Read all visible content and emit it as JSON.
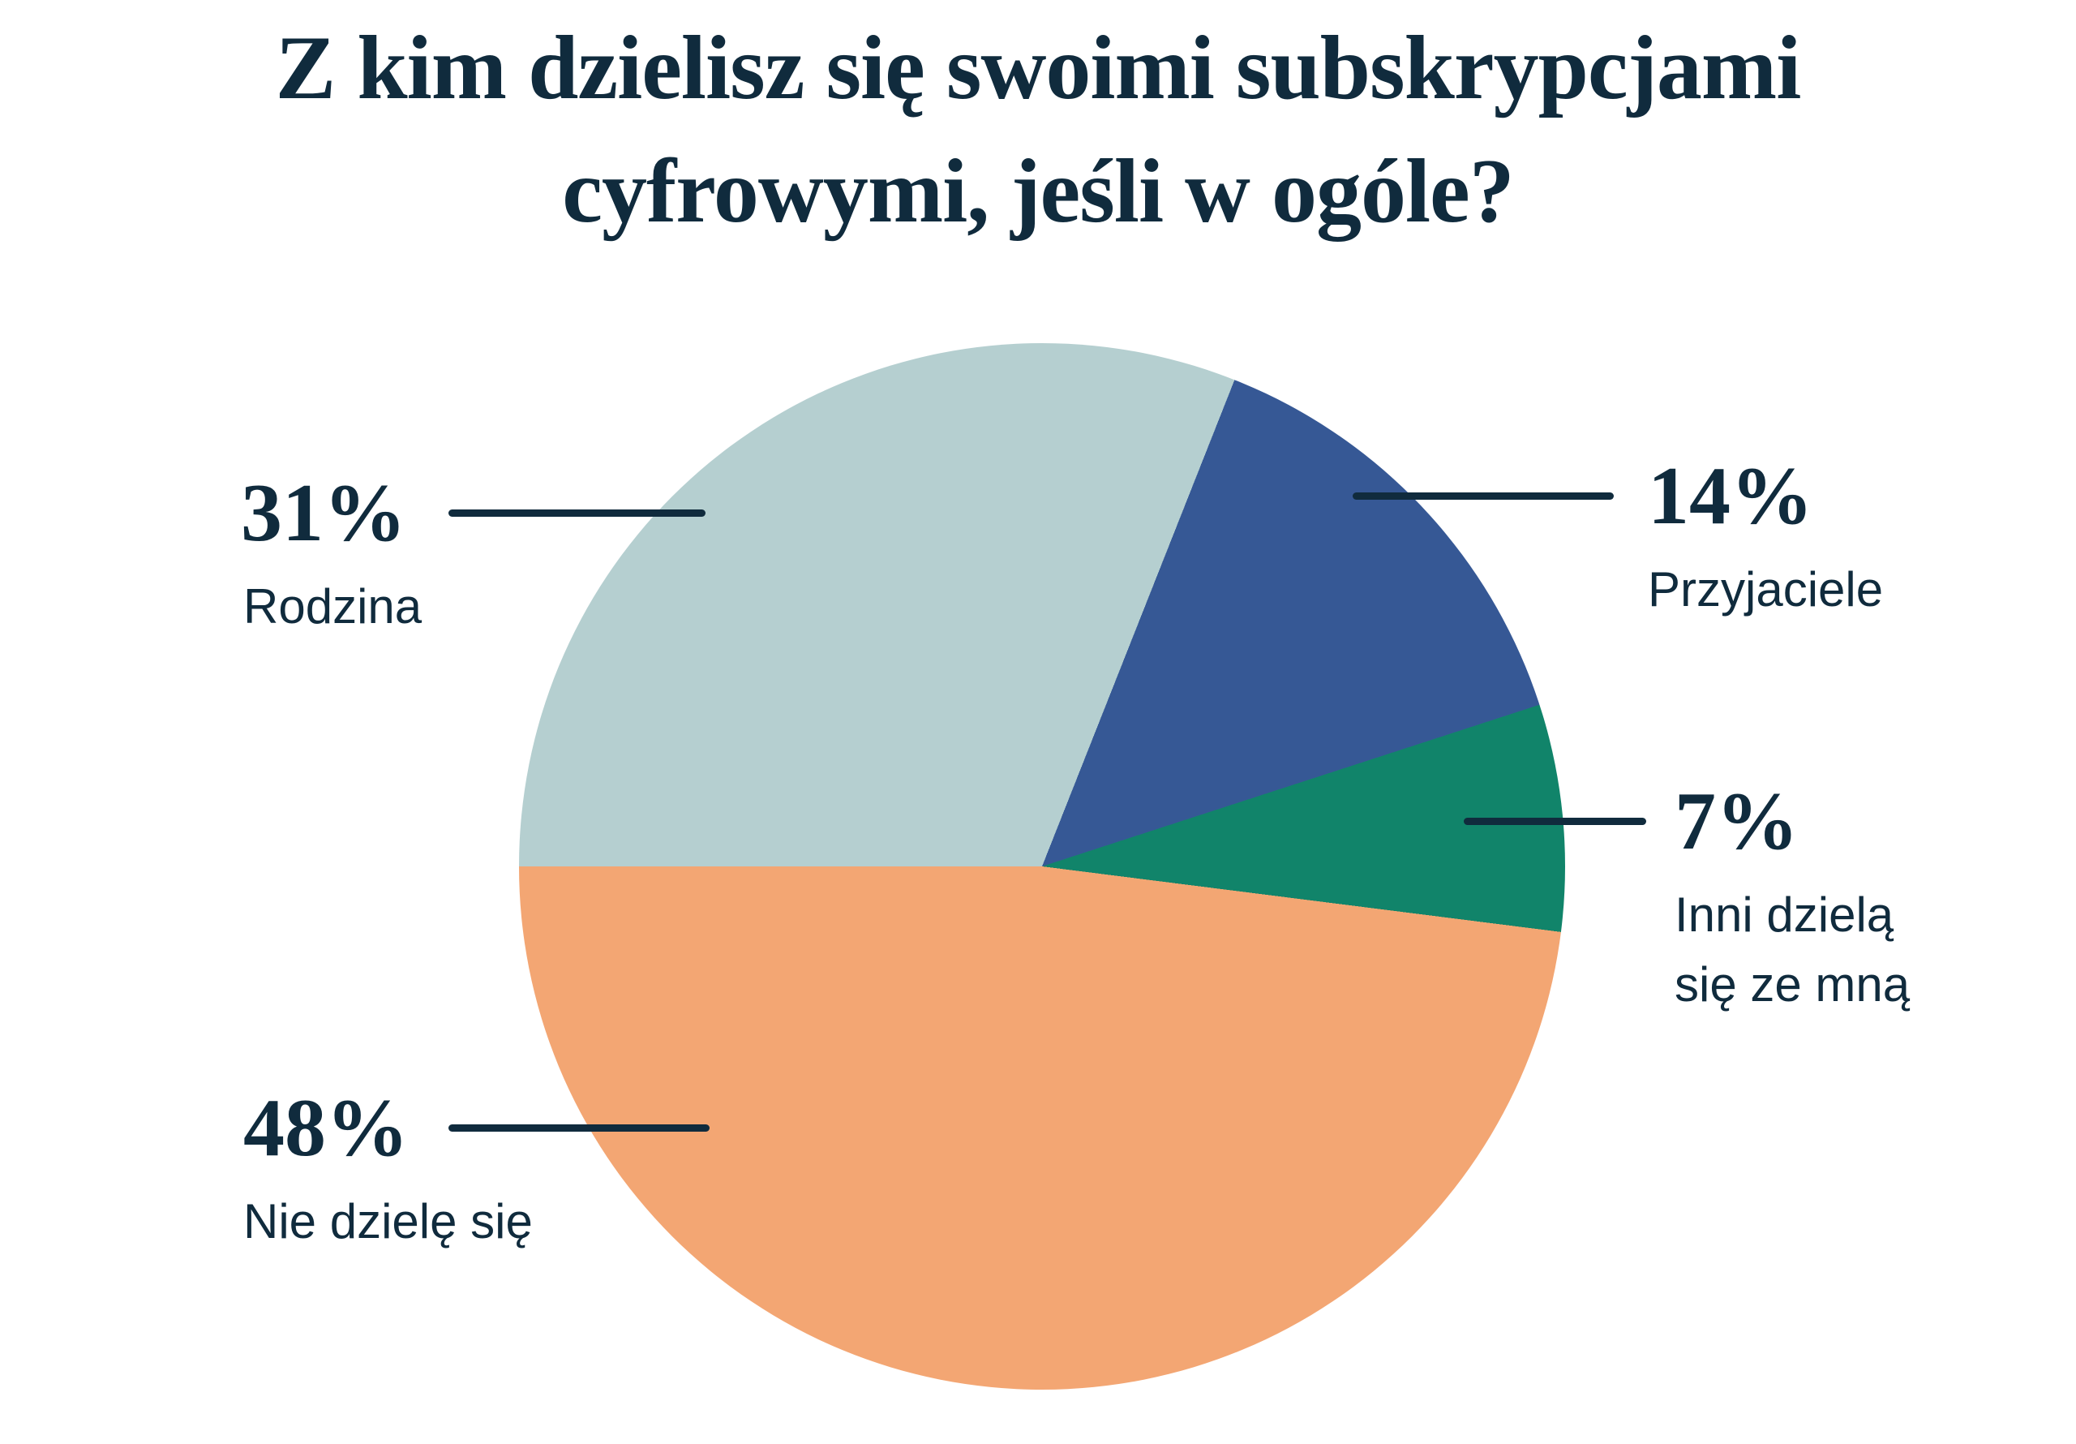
{
  "background_color": "#ffffff",
  "text_color": "#102b3d",
  "title": {
    "full": "Z kim dzielisz się swoimi subskrypcjami cyfrowymi, jeśli w ogóle?",
    "line1": "Z kim dzielisz się swoimi subskrypcjami",
    "line2": "cyfrowymi, jeśli w ogóle?"
  },
  "chart_data": {
    "type": "pie",
    "title": "Z kim dzielisz się swoimi subskrypcjami cyfrowymi, jeśli w ogóle?",
    "start_angle": "west",
    "direction": "clockwise",
    "legend_position": "callout-labels",
    "grid": false,
    "slices": [
      {
        "label": "Rodzina",
        "value": 31,
        "pct_display": "31%",
        "color": "#b5cfd0",
        "label_lines": [
          "Rodzina"
        ]
      },
      {
        "label": "Przyjaciele",
        "value": 14,
        "pct_display": "14%",
        "color": "#365895",
        "label_lines": [
          "Przyjaciele"
        ]
      },
      {
        "label": "Inni dzielą się ze mną",
        "value": 7,
        "pct_display": "7%",
        "color": "#11846a",
        "label_lines": [
          "Inni dzielą",
          "się ze mną"
        ]
      },
      {
        "label": "Nie dzielę się",
        "value": 48,
        "pct_display": "48%",
        "color": "#f3a673",
        "label_lines": [
          "Nie dzielę się"
        ]
      }
    ]
  }
}
